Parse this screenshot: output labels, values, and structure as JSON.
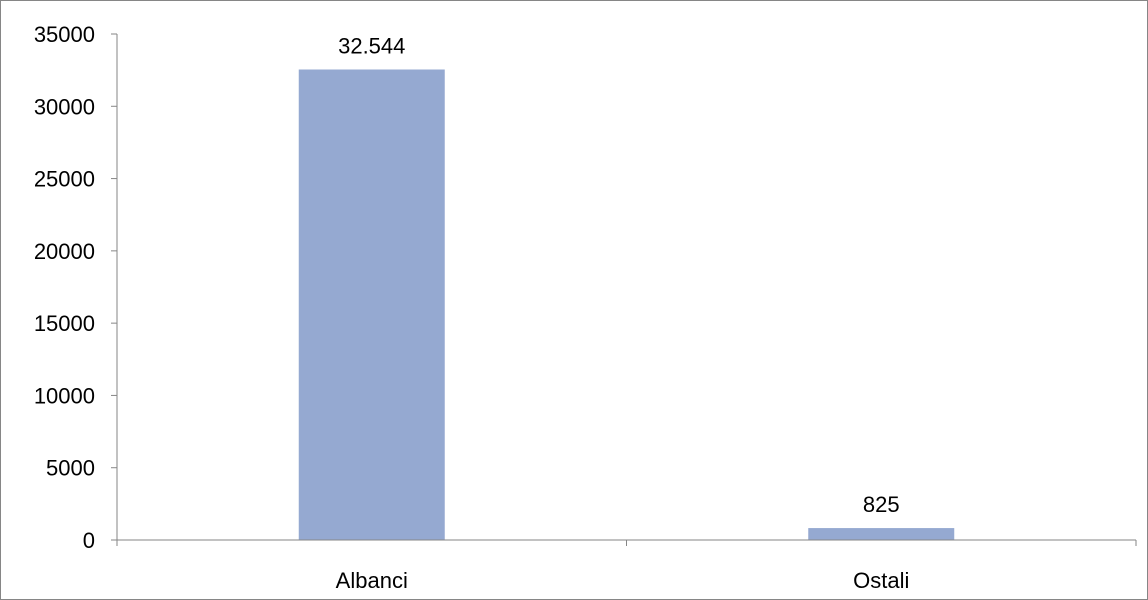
{
  "chart_data": {
    "type": "bar",
    "categories": [
      "Albanci",
      "Ostali"
    ],
    "values": [
      32544,
      825
    ],
    "data_labels": [
      "32.544",
      "825"
    ],
    "ylim": [
      0,
      35000
    ],
    "yticks": [
      0,
      5000,
      10000,
      15000,
      20000,
      25000,
      30000,
      35000
    ],
    "ytick_labels": [
      "0",
      "5000",
      "10000",
      "15000",
      "20000",
      "25000",
      "30000",
      "35000"
    ],
    "grid": false,
    "legend": "none",
    "title": "",
    "xlabel": "",
    "ylabel": "",
    "colors": {
      "bar": "#95a9d1",
      "axis": "#868686",
      "border": "#868686",
      "text": "#000000"
    }
  }
}
